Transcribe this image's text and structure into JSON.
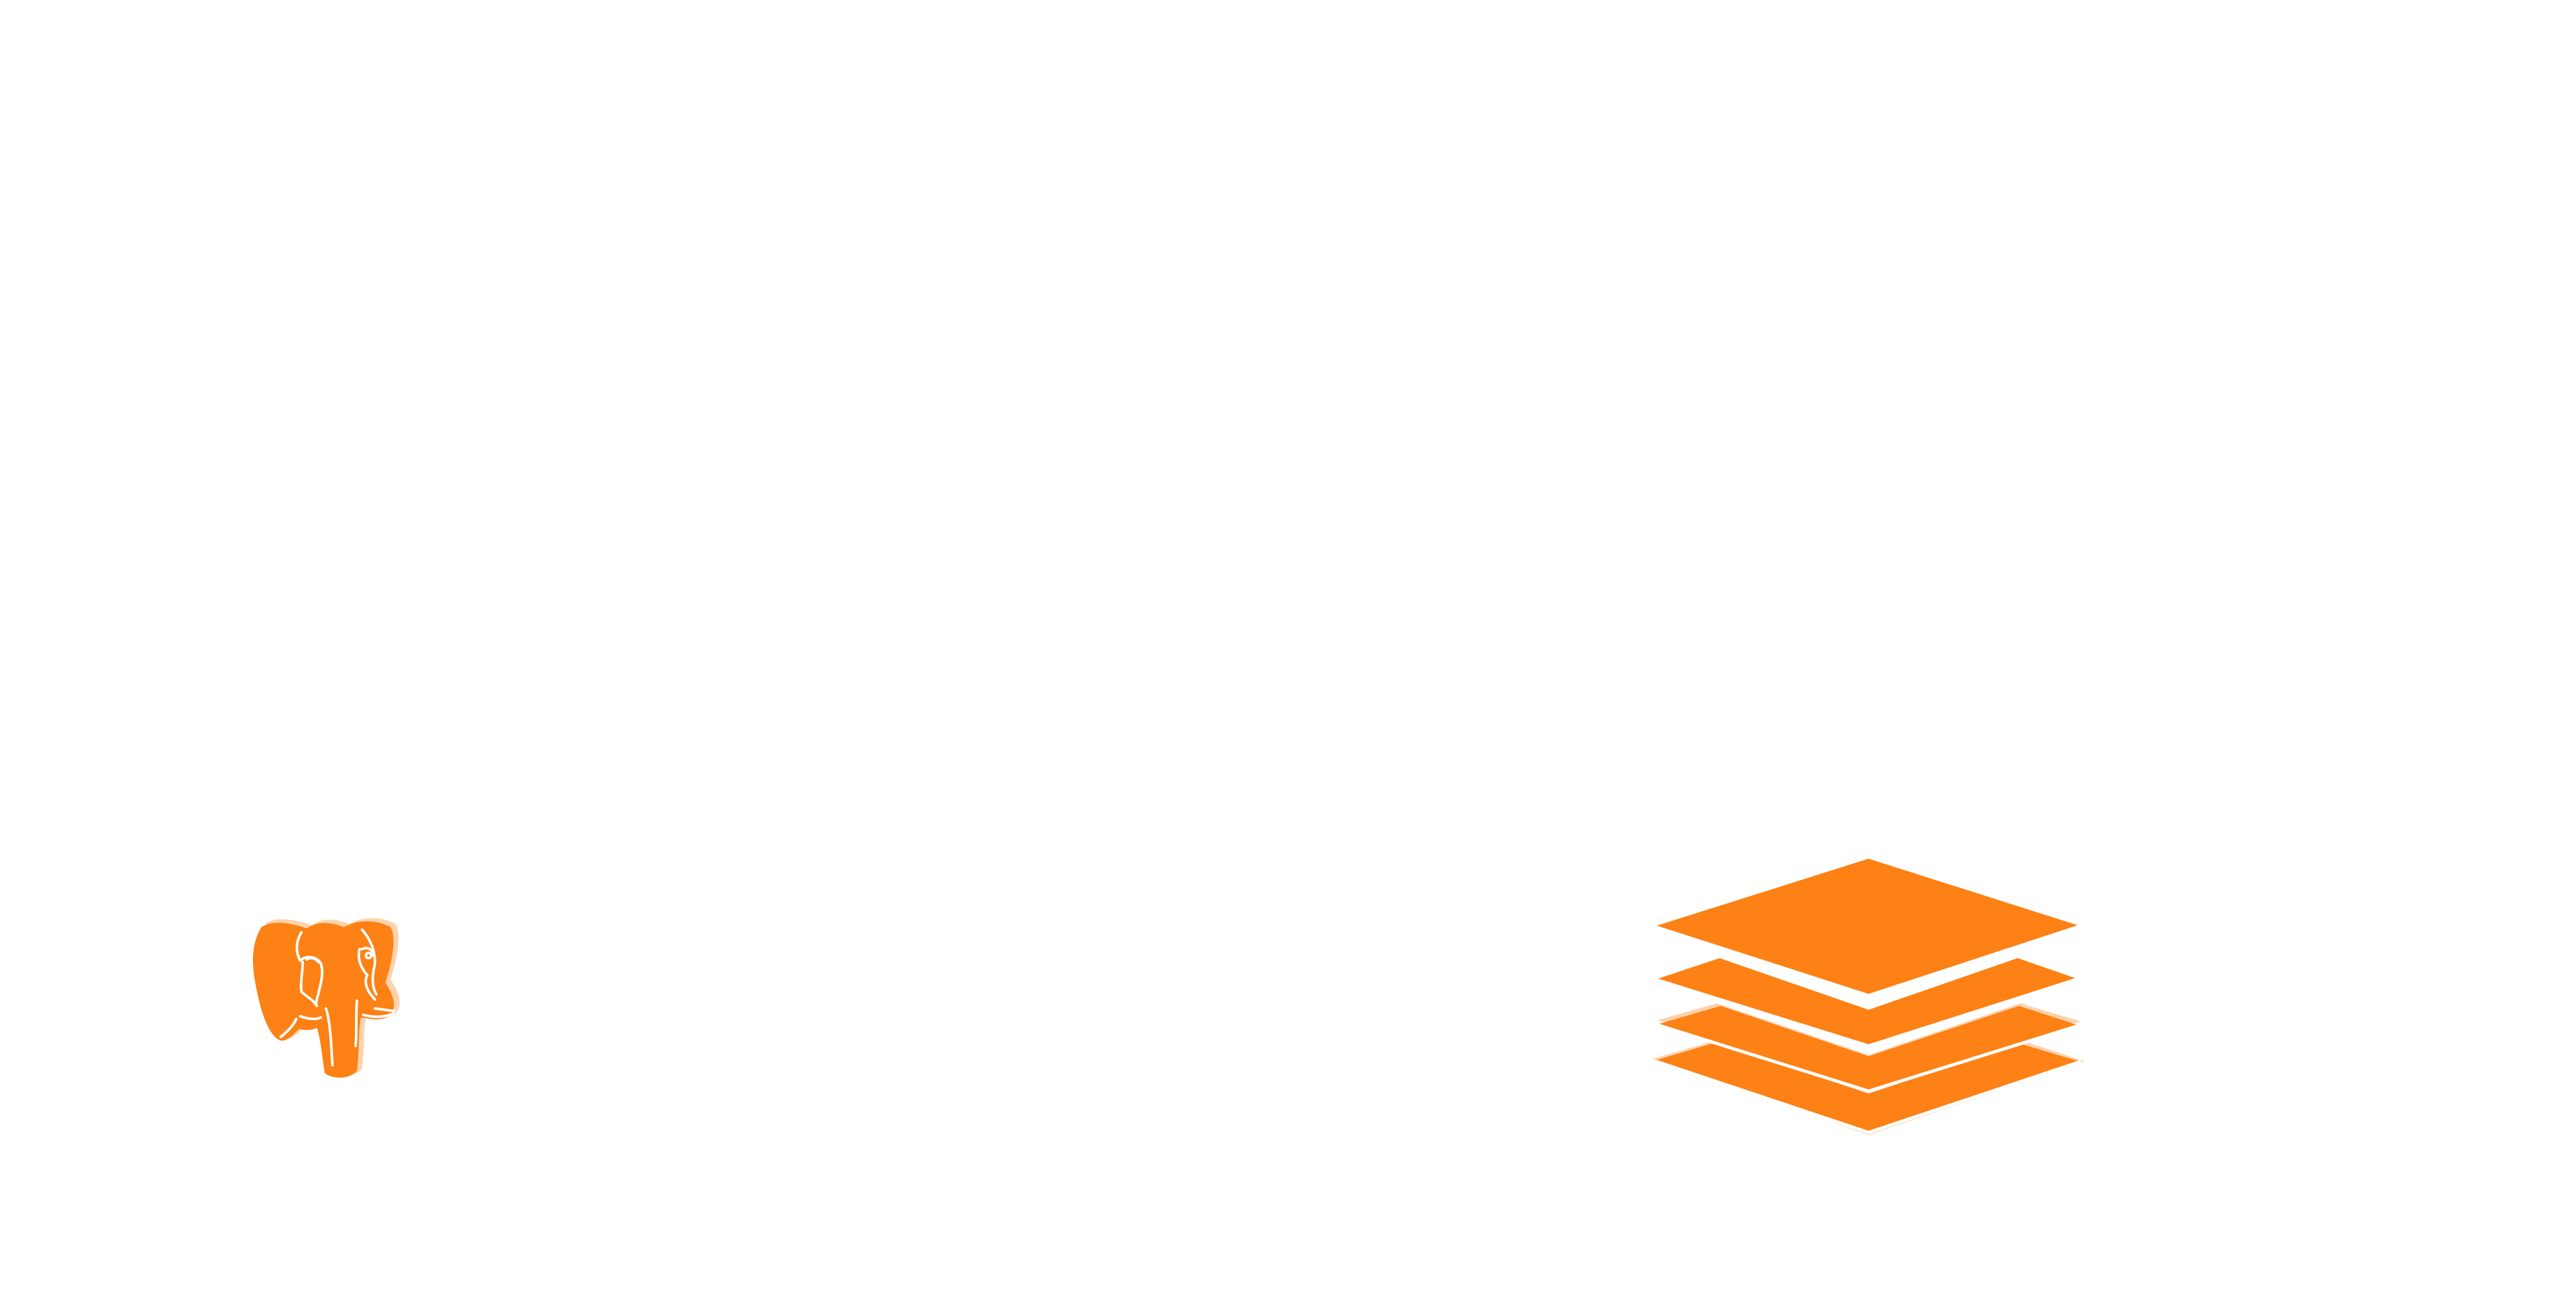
{
  "canvas": {
    "background": "#ffffff"
  },
  "icons": {
    "left": {
      "name": "postgresql-elephant-icon",
      "color": "#fd8114"
    },
    "right": {
      "name": "stacked-layers-icon",
      "color": "#fd8114"
    }
  }
}
